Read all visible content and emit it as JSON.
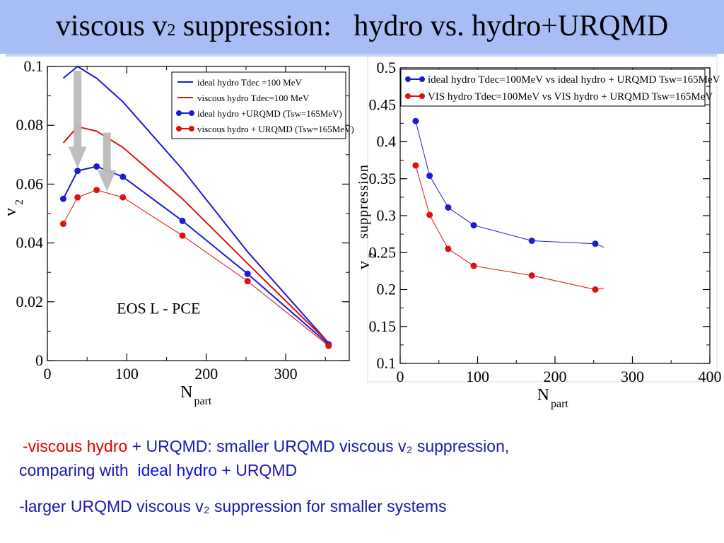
{
  "title": {
    "part1": "viscous v",
    "sub": "2",
    "part2": " suppression:   hydro vs. hydro+URQMD"
  },
  "notes": {
    "line1": {
      "lead": "-",
      "red": "viscous hydro",
      "rest": " + URQMD: smaller URQMD viscous v₂ suppression,"
    },
    "line2": {
      "lead": "comparing with  ",
      "blue": "ideal hydro",
      "rest": " + URQMD"
    },
    "line3": "-larger URQMD viscous v₂ suppression for smaller systems"
  },
  "chart_data": [
    {
      "type": "line",
      "xlabel": "N",
      "xlabel_sub": "part",
      "ylabel": "v",
      "ylabel_sub": "2",
      "xlim": [
        0,
        380
      ],
      "ylim": [
        0,
        0.1
      ],
      "xticks": [
        0,
        100,
        200,
        300
      ],
      "yticks": [
        0,
        0.02,
        0.04,
        0.06,
        0.08,
        0.1
      ],
      "ytick_labels": [
        "0",
        "0.02",
        "0.04",
        "0.06",
        "0.08",
        "0.1"
      ],
      "grid": false,
      "legend_position": "top-right",
      "annotation": "EOS L - PCE",
      "colors": {
        "ideal": "#1a1ad8",
        "viscous": "#e01010",
        "arrow": "#bbbbbb"
      },
      "series": [
        {
          "name": "ideal hydro Tdec =100 MeV",
          "style": "line",
          "color": "#1a1ad8",
          "x": [
            20,
            38,
            62,
            95,
            170,
            252,
            354
          ],
          "y": [
            0.096,
            0.1,
            0.096,
            0.088,
            0.065,
            0.037,
            0.006
          ]
        },
        {
          "name": "viscous hydro Tdec=100 MeV",
          "style": "line",
          "color": "#e01010",
          "x": [
            20,
            38,
            62,
            95,
            170,
            252,
            354
          ],
          "y": [
            0.074,
            0.0795,
            0.078,
            0.0725,
            0.055,
            0.033,
            0.006
          ]
        },
        {
          "name": "ideal hydro +URQMD (Tsw=165MeV)",
          "style": "line-marker",
          "color": "#1a1ad8",
          "x": [
            20,
            38,
            62,
            95,
            170,
            252,
            354
          ],
          "y": [
            0.055,
            0.0645,
            0.066,
            0.0625,
            0.0475,
            0.0295,
            0.0055
          ]
        },
        {
          "name": "viscous hydro + URQMD (Tsw=165MeV)",
          "style": "line-marker",
          "color": "#e01010",
          "x": [
            20,
            38,
            62,
            95,
            170,
            252,
            354
          ],
          "y": [
            0.0465,
            0.0555,
            0.058,
            0.0555,
            0.0425,
            0.027,
            0.005
          ]
        }
      ],
      "arrows": [
        {
          "x": 38,
          "y_from": 0.0985,
          "y_to": 0.0655
        },
        {
          "x": 75,
          "y_from": 0.0775,
          "y_to": 0.0575
        }
      ]
    },
    {
      "type": "line",
      "xlabel": "N",
      "xlabel_sub": "part",
      "ylabel": "v",
      "ylabel_sub": "2",
      "ylabel_extra": "suppression",
      "xlim": [
        0,
        400
      ],
      "ylim": [
        0.1,
        0.5
      ],
      "xticks": [
        0,
        100,
        200,
        300,
        400
      ],
      "yticks": [
        0.1,
        0.15,
        0.2,
        0.25,
        0.3,
        0.35,
        0.4,
        0.45,
        0.5
      ],
      "ytick_labels": [
        "0.1",
        "0.15",
        "0.2",
        "0.25",
        "0.3",
        "0.35",
        "0.4",
        "0.45",
        "0.5"
      ],
      "grid": false,
      "legend_position": "top-right",
      "colors": {
        "ideal": "#1a1ad8",
        "viscous": "#e01010"
      },
      "series": [
        {
          "name": "ideal hydro Tdec=100MeV vs ideal hydro + URQMD Tsw=165MeV",
          "style": "line-marker",
          "color": "#1a1ad8",
          "x": [
            20,
            38,
            62,
            95,
            170,
            252
          ],
          "y": [
            0.428,
            0.354,
            0.311,
            0.287,
            0.266,
            0.262
          ]
        },
        {
          "name": "VIS hydro Tdec=100MeV vs VIS hydro + URQMD Tsw=165MeV",
          "style": "line-marker",
          "color": "#e01010",
          "x": [
            20,
            38,
            62,
            95,
            170,
            252
          ],
          "y": [
            0.368,
            0.301,
            0.255,
            0.232,
            0.219,
            0.2
          ]
        }
      ]
    }
  ]
}
